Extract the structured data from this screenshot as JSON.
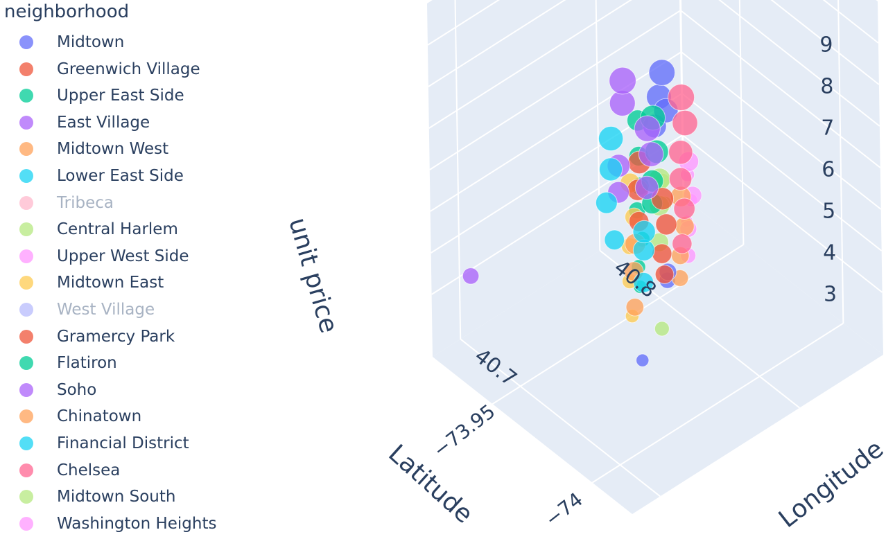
{
  "legend": {
    "title": "neighborhood",
    "items": [
      {
        "label": "Midtown",
        "color": "#636efa",
        "visible": true
      },
      {
        "label": "Greenwich Village",
        "color": "#ef553b",
        "visible": true
      },
      {
        "label": "Upper East Side",
        "color": "#00cc96",
        "visible": true
      },
      {
        "label": "East Village",
        "color": "#ab63fa",
        "visible": true
      },
      {
        "label": "Midtown West",
        "color": "#ffa15a",
        "visible": true
      },
      {
        "label": "Lower East Side",
        "color": "#19d3f3",
        "visible": true
      },
      {
        "label": "Tribeca",
        "color": "#ff6692",
        "visible": false
      },
      {
        "label": "Central Harlem",
        "color": "#b6e880",
        "visible": true
      },
      {
        "label": "Upper West Side",
        "color": "#ff97ff",
        "visible": true
      },
      {
        "label": "Midtown East",
        "color": "#fecb52",
        "visible": true
      },
      {
        "label": "West Village",
        "color": "#636efa",
        "visible": false
      },
      {
        "label": "Gramercy Park",
        "color": "#ef553b",
        "visible": true
      },
      {
        "label": "Flatiron",
        "color": "#00cc96",
        "visible": true
      },
      {
        "label": "Soho",
        "color": "#ab63fa",
        "visible": true
      },
      {
        "label": "Chinatown",
        "color": "#ffa15a",
        "visible": true
      },
      {
        "label": "Financial District",
        "color": "#19d3f3",
        "visible": true
      },
      {
        "label": "Chelsea",
        "color": "#ff6692",
        "visible": true
      },
      {
        "label": "Midtown South",
        "color": "#b6e880",
        "visible": true
      },
      {
        "label": "Washington Heights",
        "color": "#ff97ff",
        "visible": true
      }
    ]
  },
  "chart_data": {
    "type": "scatter3d",
    "axes": {
      "x": {
        "title": "Latitude",
        "ticks": [
          -74,
          -73.95
        ],
        "tick_labels": [
          "−74",
          "−73.95"
        ],
        "range": [
          -74.02,
          -73.92
        ]
      },
      "y": {
        "title": "Longitude",
        "ticks": [
          40.7,
          40.8
        ],
        "tick_labels": [
          "40.7",
          "40.8"
        ],
        "range": [
          40.68,
          40.86
        ]
      },
      "z": {
        "title": "unit price",
        "ticks": [
          3,
          4,
          5,
          6,
          7,
          8,
          9
        ],
        "tick_labels": [
          "3",
          "4",
          "5",
          "6",
          "7",
          "8",
          "9"
        ],
        "range": [
          1.5,
          10
        ]
      }
    },
    "background": "#e5ecf6",
    "gridline_color": "#ffffff",
    "series": [
      {
        "name": "Midtown",
        "color": "#636efa",
        "points": [
          [
            -73.985,
            40.755,
            9.2
          ],
          [
            -73.984,
            40.754,
            8.6
          ],
          [
            -73.983,
            40.752,
            7.9
          ],
          [
            -73.986,
            40.756,
            8.3
          ],
          [
            -73.984,
            40.758,
            4.1
          ],
          [
            -73.99,
            40.75,
            4.7
          ],
          [
            -73.98,
            40.745,
            2.3
          ]
        ]
      },
      {
        "name": "Greenwich Village",
        "color": "#ef553b",
        "points": [
          [
            -74.0,
            40.733,
            7.2
          ],
          [
            -74.001,
            40.734,
            6.6
          ],
          [
            -74.0,
            40.732,
            5.9
          ],
          [
            -73.999,
            40.735,
            5.3
          ]
        ]
      },
      {
        "name": "Upper East Side",
        "color": "#00cc96",
        "points": [
          [
            -73.958,
            40.775,
            6.6
          ],
          [
            -73.959,
            40.774,
            5.8
          ],
          [
            -73.958,
            40.776,
            5.0
          ],
          [
            -73.957,
            40.775,
            4.4
          ],
          [
            -73.958,
            40.777,
            3.7
          ],
          [
            -73.958,
            40.774,
            3.1
          ],
          [
            -73.958,
            40.775,
            2.6
          ]
        ]
      },
      {
        "name": "East Village",
        "color": "#ab63fa",
        "points": [
          [
            -73.985,
            40.727,
            9.6
          ],
          [
            -73.984,
            40.728,
            9.0
          ],
          [
            -73.983,
            40.726,
            7.5
          ],
          [
            -73.982,
            40.727,
            6.8
          ],
          [
            -73.94,
            40.68,
            4.2
          ]
        ]
      },
      {
        "name": "Midtown West",
        "color": "#ffa15a",
        "points": [
          [
            -73.99,
            40.76,
            6.3
          ],
          [
            -73.991,
            40.761,
            5.6
          ],
          [
            -73.99,
            40.759,
            4.9
          ],
          [
            -73.989,
            40.76,
            4.3
          ]
        ]
      },
      {
        "name": "Lower East Side",
        "color": "#19d3f3",
        "points": [
          [
            -73.985,
            40.718,
            8.4
          ],
          [
            -73.984,
            40.719,
            7.6
          ],
          [
            -73.983,
            40.717,
            6.8
          ],
          [
            -73.986,
            40.718,
            6.0
          ]
        ]
      },
      {
        "name": "Central Harlem",
        "color": "#b6e880",
        "points": [
          [
            -73.945,
            40.81,
            3.9
          ],
          [
            -73.946,
            40.81,
            3.4
          ]
        ]
      },
      {
        "name": "Upper West Side",
        "color": "#ff97ff",
        "points": [
          [
            -73.975,
            40.787,
            6.0
          ],
          [
            -73.976,
            40.788,
            5.2
          ],
          [
            -73.975,
            40.786,
            4.4
          ],
          [
            -73.974,
            40.787,
            3.7
          ]
        ]
      },
      {
        "name": "Midtown East",
        "color": "#fecb52",
        "points": [
          [
            -73.968,
            40.755,
            5.9
          ],
          [
            -73.969,
            40.756,
            5.1
          ],
          [
            -73.968,
            40.754,
            4.4
          ],
          [
            -73.967,
            40.755,
            3.5
          ],
          [
            -73.968,
            40.755,
            2.7
          ]
        ]
      },
      {
        "name": "Gramercy Park",
        "color": "#ef553b",
        "points": [
          [
            -73.985,
            40.738,
            7.4
          ],
          [
            -73.984,
            40.738,
            6.7
          ],
          [
            -73.985,
            40.737,
            6.0
          ]
        ]
      },
      {
        "name": "Flatiron",
        "color": "#00cc96",
        "points": [
          [
            -73.99,
            40.741,
            8.6
          ],
          [
            -73.991,
            40.742,
            7.8
          ],
          [
            -73.99,
            40.74,
            7.1
          ],
          [
            -73.989,
            40.741,
            6.5
          ]
        ]
      },
      {
        "name": "Soho",
        "color": "#ab63fa",
        "points": [
          [
            -74.0,
            40.723,
            9.1
          ],
          [
            -74.001,
            40.724,
            8.5
          ],
          [
            -74.0,
            40.722,
            7.7
          ]
        ]
      },
      {
        "name": "Chinatown",
        "color": "#ffa15a",
        "points": [
          [
            -73.998,
            40.716,
            6.4
          ],
          [
            -73.997,
            40.716,
            5.7
          ],
          [
            -73.998,
            40.715,
            4.9
          ]
        ]
      },
      {
        "name": "Financial District",
        "color": "#19d3f3",
        "points": [
          [
            -74.009,
            40.707,
            7.3
          ],
          [
            -74.008,
            40.708,
            6.8
          ],
          [
            -74.009,
            40.706,
            6.1
          ]
        ]
      },
      {
        "name": "Chelsea",
        "color": "#ff6692",
        "points": [
          [
            -74.001,
            40.746,
            9.4
          ],
          [
            -74.002,
            40.747,
            8.8
          ],
          [
            -74.001,
            40.745,
            8.1
          ],
          [
            -74.0,
            40.746,
            7.4
          ],
          [
            -74.001,
            40.747,
            6.7
          ],
          [
            -74.001,
            40.745,
            5.9
          ]
        ]
      },
      {
        "name": "Midtown South",
        "color": "#b6e880",
        "points": [
          [
            -73.988,
            40.748,
            6.9
          ],
          [
            -73.987,
            40.749,
            6.2
          ],
          [
            -73.988,
            40.747,
            5.4
          ],
          [
            -73.988,
            40.748,
            3.3
          ]
        ]
      },
      {
        "name": "Washington Heights",
        "color": "#ff97ff",
        "points": [
          [
            -73.935,
            40.842,
            3.0
          ],
          [
            -73.936,
            40.843,
            2.4
          ],
          [
            -73.935,
            40.841,
            1.9
          ]
        ]
      }
    ]
  }
}
